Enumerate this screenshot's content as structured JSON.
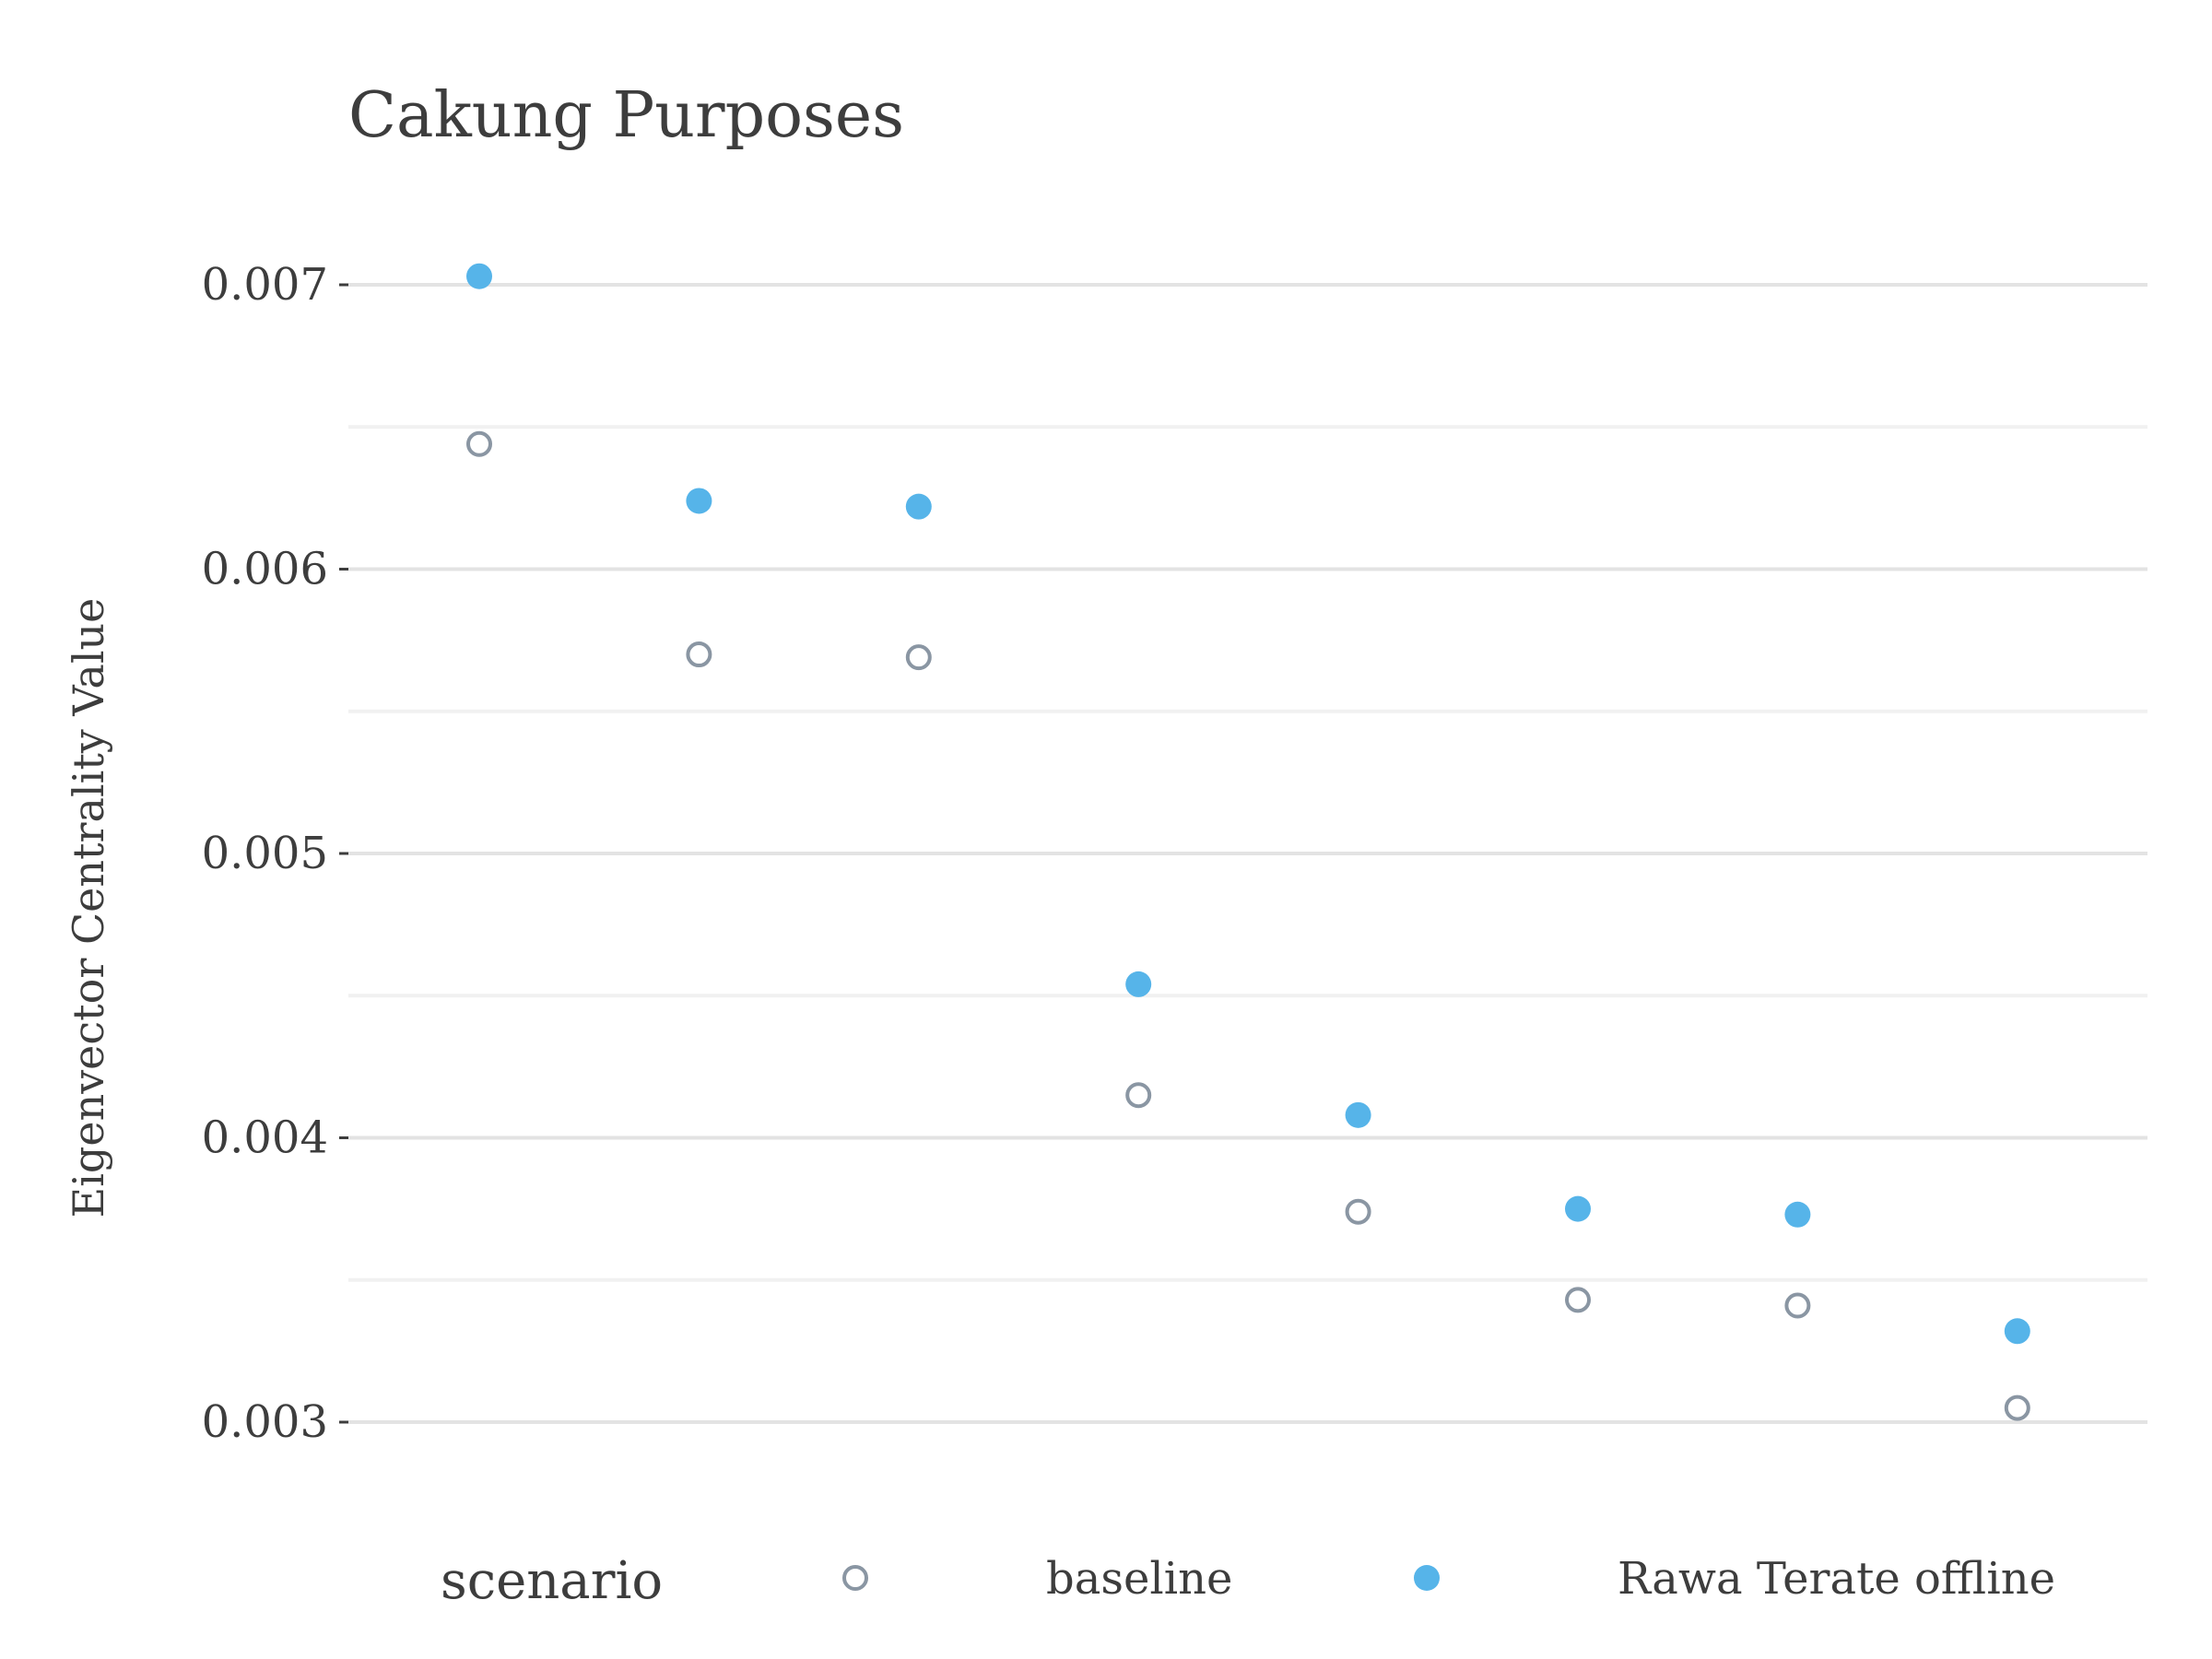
{
  "chart_data": {
    "type": "scatter",
    "title": "Cakung Purposes",
    "xlabel": "",
    "ylabel": "Eigenvector Centrality Value",
    "ylim": [
      0.0027,
      0.0073
    ],
    "y_ticks": [
      0.003,
      0.004,
      0.005,
      0.006,
      0.007
    ],
    "y_tick_labels": [
      "0.003",
      "0.004",
      "0.005",
      "0.006",
      "0.007"
    ],
    "y_minor_ticks": [
      0.0035,
      0.0045,
      0.0055,
      0.0065
    ],
    "grid": true,
    "legend": {
      "title": "scenario",
      "placement": "bottom"
    },
    "x": [
      1,
      2,
      3,
      4,
      5,
      6,
      7,
      8
    ],
    "series": [
      {
        "name": "baseline",
        "marker": "open-circle",
        "color": "#8a96a3",
        "values": [
          0.00644,
          0.0057,
          0.00569,
          0.00415,
          0.00374,
          0.00343,
          0.00341,
          0.00305
        ]
      },
      {
        "name": "Rawa Terate offline",
        "marker": "filled-circle",
        "color": "#56b4e9",
        "values": [
          0.00703,
          0.00624,
          0.00622,
          0.00454,
          0.00408,
          0.00375,
          0.00373,
          0.00332
        ]
      }
    ],
    "colors": {
      "major_grid": "#e3e3e3",
      "minor_grid": "#f1f1f1",
      "text": "#3d3d3d"
    }
  }
}
